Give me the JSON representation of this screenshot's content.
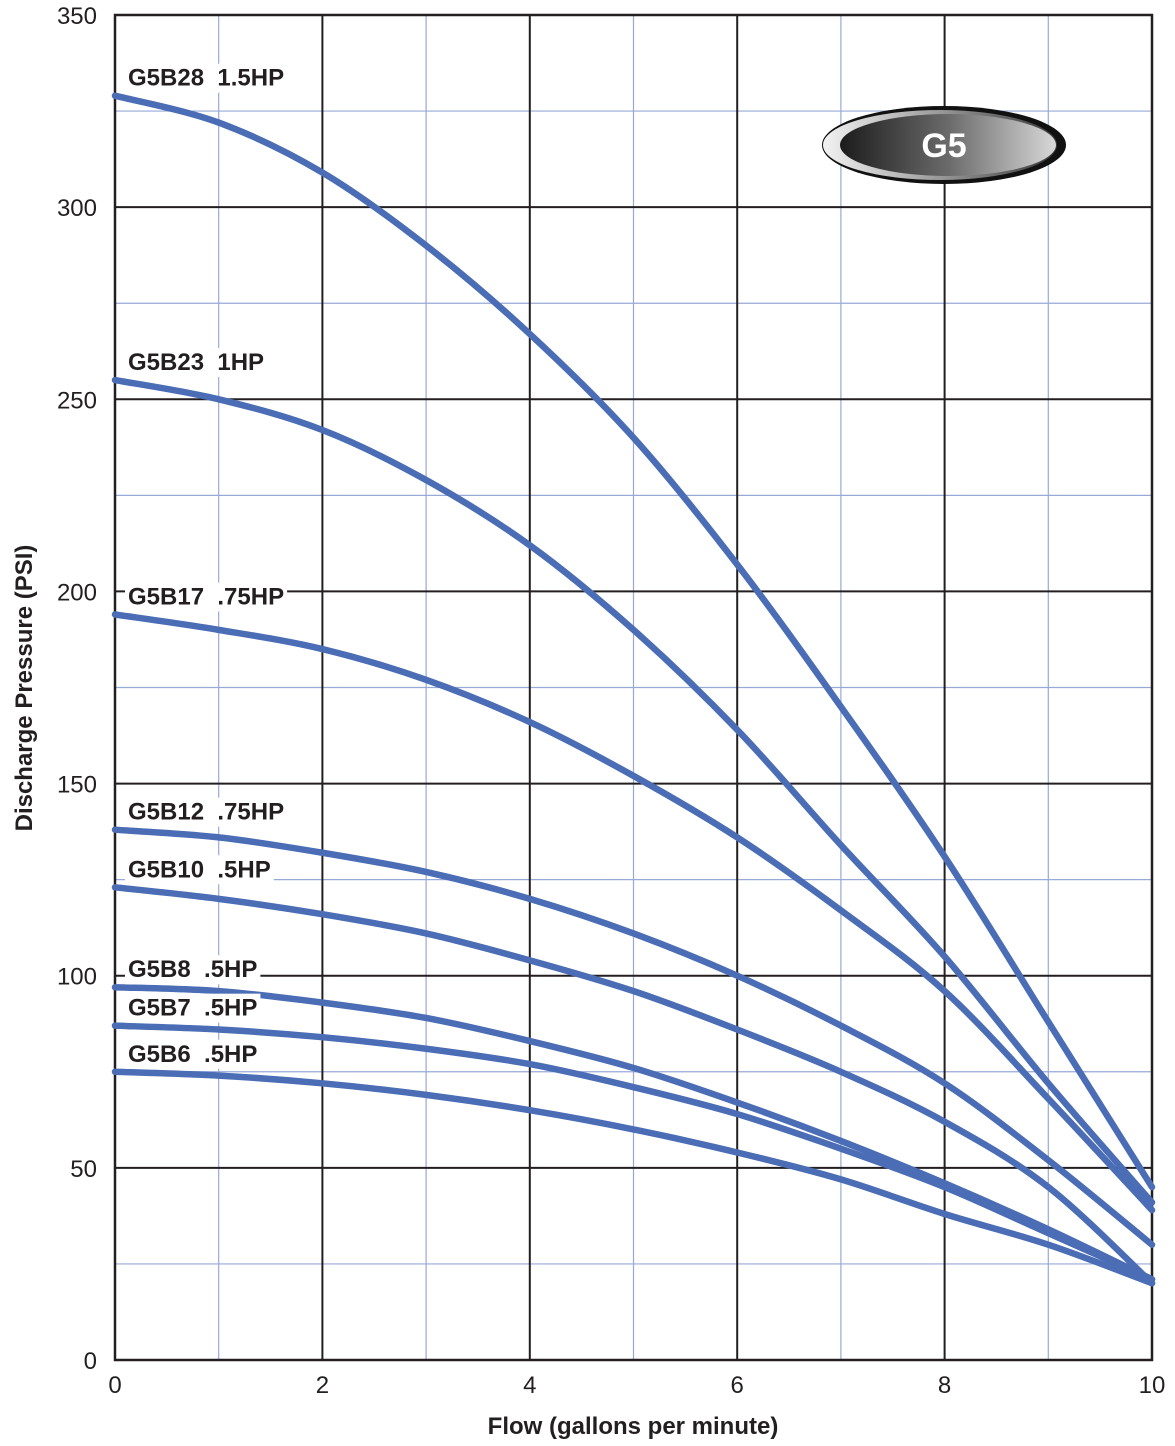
{
  "chart_data": {
    "type": "line",
    "xlabel": "Flow (gallons per minute)",
    "ylabel": "Discharge Pressure (PSI)",
    "xlim": [
      0,
      10
    ],
    "ylim": [
      0,
      350
    ],
    "x_ticks": [
      0,
      2,
      4,
      6,
      8,
      10
    ],
    "y_ticks": [
      0,
      50,
      100,
      150,
      200,
      250,
      300,
      350
    ],
    "grid": true,
    "badge": "G5",
    "line_color": "#4a6db5",
    "series": [
      {
        "name": "G5B28  1.5HP",
        "x": [
          0,
          1,
          2,
          3,
          4,
          5,
          6,
          7,
          8,
          9,
          10
        ],
        "values": [
          329,
          322,
          309,
          290,
          267,
          240,
          207,
          170,
          131,
          88,
          45
        ]
      },
      {
        "name": "G5B23  1HP",
        "x": [
          0,
          1,
          2,
          3,
          4,
          5,
          6,
          7,
          8,
          9,
          10
        ],
        "values": [
          255,
          250,
          242,
          229,
          212,
          190,
          164,
          134,
          105,
          72,
          41
        ]
      },
      {
        "name": "G5B17  .75HP",
        "x": [
          0,
          1,
          2,
          3,
          4,
          5,
          6,
          7,
          8,
          9,
          10
        ],
        "values": [
          194,
          190,
          185,
          177,
          166,
          152,
          136,
          117,
          96,
          68,
          39
        ]
      },
      {
        "name": "G5B12  .75HP",
        "x": [
          0,
          1,
          2,
          3,
          4,
          5,
          6,
          7,
          8,
          9,
          10
        ],
        "values": [
          138,
          136,
          132,
          127,
          120,
          111,
          100,
          87,
          72,
          52,
          30
        ]
      },
      {
        "name": "G5B10  .5HP",
        "x": [
          0,
          1,
          2,
          3,
          4,
          5,
          6,
          7,
          8,
          9,
          10
        ],
        "values": [
          123,
          120,
          116,
          111,
          104,
          96,
          86,
          75,
          62,
          45,
          20
        ]
      },
      {
        "name": "G5B8  .5HP",
        "x": [
          0,
          1,
          2,
          3,
          4,
          5,
          6,
          7,
          8,
          9,
          10
        ],
        "values": [
          97,
          96,
          93,
          89,
          83,
          76,
          67,
          57,
          46,
          34,
          21
        ]
      },
      {
        "name": "G5B7  .5HP",
        "x": [
          0,
          1,
          2,
          3,
          4,
          5,
          6,
          7,
          8,
          9,
          10
        ],
        "values": [
          87,
          86,
          84,
          81,
          77,
          71,
          64,
          55,
          45,
          33,
          21
        ]
      },
      {
        "name": "G5B6  .5HP",
        "x": [
          0,
          1,
          2,
          3,
          4,
          5,
          6,
          7,
          8,
          9,
          10
        ],
        "values": [
          75,
          74,
          72,
          69,
          65,
          60,
          54,
          47,
          38,
          30,
          20
        ]
      }
    ]
  }
}
